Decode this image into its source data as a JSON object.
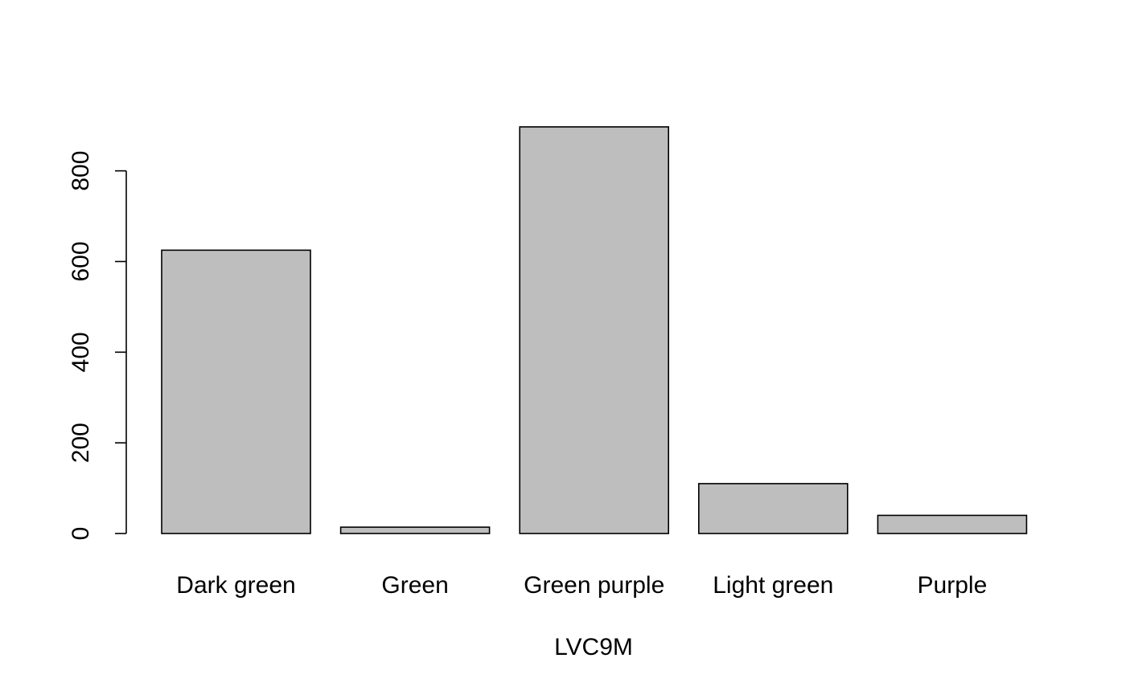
{
  "chart_data": {
    "type": "bar",
    "title": "",
    "xlabel": "LVC9M",
    "ylabel": "",
    "categories": [
      "Dark green",
      "Green",
      "Green purple",
      "Light green",
      "Purple"
    ],
    "values": [
      625,
      14,
      897,
      110,
      40
    ],
    "yticks": [
      0,
      200,
      400,
      600,
      800
    ],
    "ytick_labels": [
      "0",
      "200",
      "400",
      "600",
      "800"
    ],
    "ylim": [
      0,
      897
    ],
    "bar_color": "#bebebe",
    "outline_color": "#000000",
    "grid": false,
    "legend": "none"
  }
}
